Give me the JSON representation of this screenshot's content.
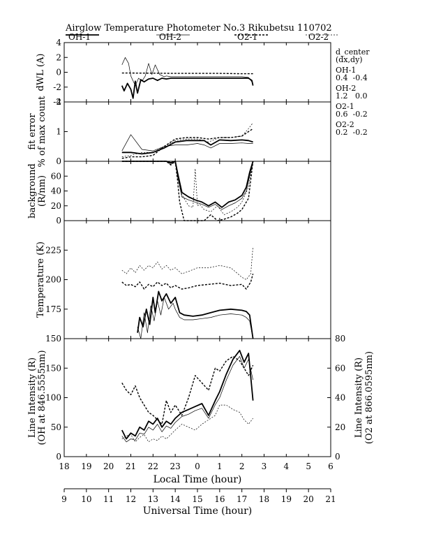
{
  "title": "Airglow Temperature Photometer No.3  Rikubetsu    110702",
  "legend": [
    {
      "label": "OH-1",
      "style": "solid-thick"
    },
    {
      "label": "OH-2",
      "style": "solid-thin"
    },
    {
      "label": "O2-1",
      "style": "dash-thick"
    },
    {
      "label": "O2-2",
      "style": "dash-thin"
    }
  ],
  "annotations": {
    "d_center": "d_center",
    "dxdy": "(dx,dy)",
    "oh1_label": "OH-1",
    "oh1_values": "0.4  -0.4",
    "oh2_label": "OH-2",
    "oh2_values": "1.2   0.0",
    "o21_label": "O2-1",
    "o21_values": "0.6  -0.2",
    "o22_label": "O2-2",
    "o22_values": "0.2  -0.2"
  },
  "x_axis": {
    "local_label": "Local Time (hour)",
    "local_ticks": [
      "18",
      "19",
      "20",
      "21",
      "22",
      "23",
      "0",
      "1",
      "2",
      "3",
      "4",
      "5",
      "6"
    ],
    "ut_label": "Universal Time (hour)",
    "ut_ticks": [
      "9",
      "10",
      "11",
      "12",
      "13",
      "14",
      "15",
      "16",
      "17",
      "18",
      "19",
      "20",
      "21"
    ]
  },
  "chart_data": [
    {
      "type": "line",
      "panel": "dwl",
      "ylabel": "dWL (A)",
      "ylim": [
        -4,
        4
      ],
      "yticks": [
        "-4",
        "-2",
        "0",
        "2",
        "4"
      ],
      "series": [
        {
          "name": "OH-1",
          "x": [
            20.6,
            20.7,
            20.85,
            21.0,
            21.1,
            21.2,
            21.3,
            21.45,
            21.6,
            21.8,
            22.0,
            22.2,
            22.4,
            22.6,
            22.8,
            23.0,
            24.0,
            25.0,
            26.0,
            26.3,
            26.45,
            26.5
          ],
          "y": [
            -1.8,
            -2.5,
            -1.5,
            -2.3,
            -3.5,
            -1.2,
            -2.8,
            -1.0,
            -1.3,
            -0.9,
            -0.8,
            -1.1,
            -0.8,
            -0.9,
            -0.8,
            -0.8,
            -0.8,
            -0.8,
            -0.8,
            -0.8,
            -1.1,
            -1.8
          ]
        },
        {
          "name": "OH-2",
          "x": [
            20.6,
            20.75,
            20.9,
            21.0,
            21.2,
            21.35,
            21.5,
            21.65,
            21.8,
            21.95,
            22.1,
            22.3,
            22.5,
            22.6,
            22.8,
            23.0,
            24.0,
            25.0,
            26.0,
            26.3,
            26.45,
            26.5
          ],
          "y": [
            1.0,
            2.0,
            1.2,
            -0.5,
            -1.8,
            -0.8,
            -1.2,
            -0.5,
            1.2,
            -0.3,
            1.0,
            -0.3,
            -0.6,
            -0.5,
            -0.6,
            -0.6,
            -0.6,
            -0.6,
            -0.6,
            -0.7,
            -1.3,
            -1.5
          ]
        },
        {
          "name": "O2-1",
          "x": [
            20.6,
            21.0,
            22.0,
            23.0,
            24.0,
            25.0,
            26.0,
            26.5
          ],
          "y": [
            -0.1,
            -0.1,
            -0.12,
            -0.15,
            -0.15,
            -0.15,
            -0.2,
            -0.2
          ]
        }
      ]
    },
    {
      "type": "line",
      "panel": "fit_error",
      "ylabel": "fit error",
      "ylabel2": "% of max count",
      "ylim": [
        0,
        2
      ],
      "yticks": [
        "0",
        "1",
        "2"
      ],
      "series": [
        {
          "name": "OH-1",
          "x": [
            20.6,
            21.0,
            21.5,
            22.0,
            22.5,
            23.0,
            23.5,
            24.0,
            24.3,
            24.6,
            25.0,
            25.5,
            26.0,
            26.3,
            26.5
          ],
          "y": [
            0.3,
            0.3,
            0.25,
            0.3,
            0.45,
            0.65,
            0.7,
            0.7,
            0.7,
            0.55,
            0.72,
            0.7,
            0.72,
            0.7,
            0.65
          ]
        },
        {
          "name": "OH-2",
          "x": [
            20.6,
            21.0,
            21.5,
            22.0,
            22.5,
            23.0,
            23.5,
            24.0,
            24.3,
            24.6,
            25.0,
            25.5,
            26.0,
            26.3,
            26.5
          ],
          "y": [
            0.35,
            0.9,
            0.4,
            0.35,
            0.5,
            0.55,
            0.55,
            0.6,
            0.55,
            0.45,
            0.6,
            0.6,
            0.62,
            0.6,
            0.6
          ]
        },
        {
          "name": "O2-1",
          "x": [
            20.6,
            21.0,
            21.5,
            22.0,
            22.5,
            23.0,
            23.5,
            24.0,
            24.5,
            25.0,
            25.5,
            26.0,
            26.3,
            26.5
          ],
          "y": [
            0.1,
            0.15,
            0.15,
            0.2,
            0.5,
            0.75,
            0.8,
            0.8,
            0.75,
            0.8,
            0.8,
            0.85,
            1.0,
            1.1
          ]
        },
        {
          "name": "O2-2",
          "x": [
            20.6,
            21.0,
            21.5,
            22.0,
            22.5,
            23.0,
            23.5,
            24.0,
            24.5,
            25.0,
            25.5,
            26.0,
            26.3,
            26.5
          ],
          "y": [
            0.15,
            0.2,
            0.3,
            0.3,
            0.5,
            0.7,
            0.75,
            0.75,
            0.65,
            0.8,
            0.8,
            0.85,
            1.1,
            1.3
          ]
        }
      ]
    },
    {
      "type": "line",
      "panel": "background",
      "ylabel": "background",
      "ylabel2": "(R/nm)",
      "ylim": [
        0,
        80
      ],
      "yticks": [
        "0",
        "20",
        "40",
        "60"
      ],
      "series": [
        {
          "name": "OH-1",
          "x": [
            20.6,
            21.0,
            22.0,
            22.6,
            22.8,
            23.0,
            23.1,
            23.3,
            23.6,
            23.9,
            24.2,
            24.5,
            24.8,
            25.1,
            25.4,
            25.7,
            26.0,
            26.2,
            26.35,
            26.5
          ],
          "y": [
            80,
            80,
            80,
            80,
            78,
            80,
            65,
            38,
            32,
            28,
            25,
            20,
            25,
            18,
            25,
            28,
            34,
            45,
            65,
            80
          ]
        },
        {
          "name": "OH-2",
          "x": [
            20.6,
            21.0,
            22.0,
            22.6,
            22.8,
            23.0,
            23.1,
            23.3,
            23.6,
            23.9,
            24.2,
            24.5,
            24.8,
            25.1,
            25.4,
            25.7,
            26.0,
            26.2,
            26.35,
            26.5
          ],
          "y": [
            80,
            80,
            80,
            80,
            76,
            80,
            60,
            32,
            28,
            25,
            22,
            18,
            22,
            15,
            20,
            24,
            30,
            40,
            60,
            80
          ]
        },
        {
          "name": "O2-1",
          "x": [
            20.6,
            21.0,
            22.0,
            22.6,
            22.8,
            23.0,
            23.1,
            23.2,
            23.4,
            24.0,
            24.3,
            24.6,
            24.9,
            25.2,
            25.5,
            25.8,
            26.0,
            26.3,
            26.5
          ],
          "y": [
            80,
            80,
            80,
            80,
            75,
            80,
            55,
            25,
            0,
            0,
            0,
            8,
            0,
            2,
            5,
            10,
            15,
            30,
            80
          ]
        },
        {
          "name": "O2-2",
          "x": [
            20.6,
            21.0,
            22.0,
            22.6,
            22.8,
            23.0,
            23.1,
            23.3,
            23.6,
            23.8,
            23.9,
            24.0,
            24.1,
            24.3,
            24.6,
            24.9,
            25.2,
            25.5,
            25.8,
            26.0,
            26.3,
            26.5
          ],
          "y": [
            80,
            80,
            80,
            80,
            78,
            80,
            60,
            35,
            20,
            18,
            70,
            20,
            22,
            15,
            12,
            20,
            8,
            12,
            18,
            25,
            45,
            80
          ]
        }
      ]
    },
    {
      "type": "line",
      "panel": "temperature",
      "ylabel": "Temperature (K)",
      "ylim": [
        150,
        250
      ],
      "yticks": [
        "150",
        "175",
        "200",
        "225"
      ],
      "series": [
        {
          "name": "OH-1",
          "x": [
            21.3,
            21.4,
            21.55,
            21.7,
            21.85,
            22.0,
            22.1,
            22.25,
            22.4,
            22.6,
            22.8,
            23.0,
            23.2,
            23.4,
            23.8,
            24.2,
            24.6,
            25.0,
            25.5,
            26.0,
            26.2,
            26.35,
            26.5
          ],
          "y": [
            155,
            168,
            160,
            175,
            162,
            185,
            172,
            190,
            182,
            188,
            180,
            185,
            172,
            170,
            169,
            170,
            172,
            174,
            175,
            174,
            173,
            170,
            150
          ]
        },
        {
          "name": "OH-2",
          "x": [
            21.3,
            21.45,
            21.6,
            21.75,
            21.9,
            22.05,
            22.2,
            22.35,
            22.5,
            22.7,
            22.9,
            23.0,
            23.2,
            23.4,
            23.8,
            24.2,
            24.6,
            25.0,
            25.5,
            26.0,
            26.2,
            26.35,
            26.5
          ],
          "y": [
            160,
            150,
            172,
            155,
            178,
            165,
            182,
            170,
            185,
            175,
            180,
            175,
            168,
            166,
            166,
            167,
            168,
            170,
            171,
            170,
            168,
            165,
            150
          ]
        },
        {
          "name": "O2-1",
          "x": [
            20.6,
            20.8,
            21.0,
            21.2,
            21.4,
            21.6,
            21.8,
            22.0,
            22.2,
            22.4,
            22.6,
            22.8,
            23.0,
            23.3,
            23.6,
            24.0,
            24.5,
            25.0,
            25.5,
            26.0,
            26.2,
            26.4,
            26.5
          ],
          "y": [
            198,
            195,
            196,
            194,
            198,
            192,
            196,
            194,
            198,
            195,
            197,
            193,
            195,
            192,
            193,
            195,
            196,
            197,
            195,
            196,
            192,
            198,
            205
          ]
        },
        {
          "name": "O2-2",
          "x": [
            20.6,
            20.8,
            21.0,
            21.2,
            21.4,
            21.6,
            21.8,
            22.0,
            22.2,
            22.4,
            22.6,
            22.8,
            23.0,
            23.3,
            23.6,
            24.0,
            24.5,
            25.0,
            25.5,
            26.0,
            26.2,
            26.4,
            26.5
          ],
          "y": [
            208,
            205,
            210,
            206,
            212,
            208,
            212,
            210,
            215,
            209,
            212,
            208,
            210,
            205,
            207,
            210,
            210,
            212,
            210,
            202,
            200,
            205,
            228
          ]
        }
      ]
    },
    {
      "type": "line",
      "panel": "intensity",
      "ylabel": "Line Intensity (R)",
      "ylabel2": "(OH at 846.5555nm)",
      "ylabel_right": "Line Intensity (R)",
      "ylabel_right2": "(O2 at 866.0595nm)",
      "ylim": [
        0,
        200
      ],
      "yticks": [
        "0",
        "50",
        "100",
        "150"
      ],
      "ylim_right": [
        0,
        80
      ],
      "yticks_right": [
        "0",
        "20",
        "40",
        "60",
        "80"
      ],
      "series": [
        {
          "name": "OH-1",
          "x": [
            20.6,
            20.8,
            21.0,
            21.2,
            21.4,
            21.6,
            21.8,
            22.0,
            22.2,
            22.4,
            22.6,
            22.8,
            23.0,
            23.3,
            23.6,
            23.9,
            24.2,
            24.5,
            24.8,
            25.0,
            25.3,
            25.6,
            25.9,
            26.1,
            26.3,
            26.5
          ],
          "y": [
            45,
            30,
            40,
            35,
            50,
            45,
            60,
            55,
            65,
            50,
            60,
            55,
            65,
            75,
            80,
            85,
            90,
            70,
            95,
            110,
            140,
            165,
            180,
            160,
            175,
            95
          ]
        },
        {
          "name": "OH-2",
          "x": [
            20.6,
            20.8,
            21.0,
            21.2,
            21.4,
            21.6,
            21.8,
            22.0,
            22.2,
            22.4,
            22.6,
            22.8,
            23.0,
            23.3,
            23.6,
            23.9,
            24.2,
            24.5,
            24.8,
            25.0,
            25.3,
            25.6,
            25.9,
            26.1,
            26.3,
            26.5
          ],
          "y": [
            35,
            25,
            30,
            28,
            40,
            38,
            50,
            45,
            55,
            42,
            52,
            48,
            58,
            68,
            72,
            78,
            82,
            65,
            88,
            100,
            130,
            155,
            170,
            150,
            165,
            130
          ]
        },
        {
          "name": "O2-1",
          "x": [
            20.6,
            20.8,
            21.0,
            21.2,
            21.4,
            21.6,
            21.8,
            22.0,
            22.2,
            22.4,
            22.6,
            22.8,
            23.0,
            23.3,
            23.6,
            23.9,
            24.2,
            24.5,
            24.8,
            25.0,
            25.3,
            25.6,
            25.9,
            26.1,
            26.3,
            26.5
          ],
          "y": [
            50,
            45,
            42,
            48,
            40,
            35,
            30,
            28,
            25,
            22,
            38,
            30,
            35,
            28,
            40,
            55,
            50,
            45,
            60,
            58,
            65,
            68,
            65,
            60,
            55,
            62
          ]
        },
        {
          "name": "O2-2",
          "x": [
            20.6,
            20.8,
            21.0,
            21.2,
            21.4,
            21.6,
            21.8,
            22.0,
            22.2,
            22.4,
            22.6,
            22.8,
            23.0,
            23.3,
            23.6,
            23.9,
            24.2,
            24.5,
            24.8,
            25.0,
            25.3,
            25.6,
            25.9,
            26.1,
            26.3,
            26.5
          ],
          "y": [
            12,
            14,
            15,
            10,
            13,
            15,
            10,
            12,
            11,
            14,
            12,
            15,
            18,
            22,
            20,
            18,
            22,
            25,
            28,
            35,
            35,
            32,
            30,
            25,
            22,
            26
          ]
        }
      ]
    }
  ]
}
